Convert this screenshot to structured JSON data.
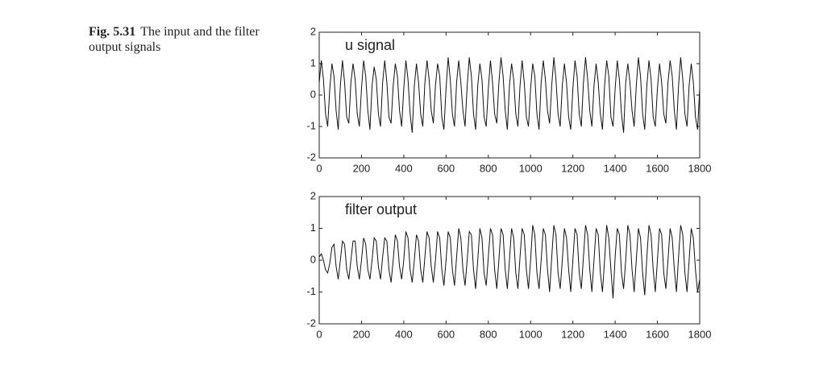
{
  "caption": {
    "label": "Fig. 5.31",
    "text": "The input and the filter output signals"
  },
  "chart_data": [
    {
      "type": "line",
      "x": [
        0,
        10,
        20,
        30,
        40,
        50,
        60,
        70,
        80,
        90,
        100,
        110,
        120,
        130,
        140,
        150,
        160,
        170,
        180,
        190,
        200,
        210,
        220,
        230,
        240,
        250,
        260,
        270,
        280,
        290,
        300,
        310,
        320,
        330,
        340,
        350,
        360,
        370,
        380,
        390,
        400,
        410,
        420,
        430,
        440,
        450,
        460,
        470,
        480,
        490,
        500,
        510,
        520,
        530,
        540,
        550,
        560,
        570,
        580,
        590,
        600,
        610,
        620,
        630,
        640,
        650,
        660,
        670,
        680,
        690,
        700,
        710,
        720,
        730,
        740,
        750,
        760,
        770,
        780,
        790,
        800,
        810,
        820,
        830,
        840,
        850,
        860,
        870,
        880,
        890,
        900,
        910,
        920,
        930,
        940,
        950,
        960,
        970,
        980,
        990,
        1000,
        1010,
        1020,
        1030,
        1040,
        1050,
        1060,
        1070,
        1080,
        1090,
        1100,
        1110,
        1120,
        1130,
        1140,
        1150,
        1160,
        1170,
        1180,
        1190,
        1200,
        1210,
        1220,
        1230,
        1240,
        1250,
        1260,
        1270,
        1280,
        1290,
        1300,
        1310,
        1320,
        1330,
        1340,
        1350,
        1360,
        1370,
        1380,
        1390,
        1400,
        1410,
        1420,
        1430,
        1440,
        1450,
        1460,
        1470,
        1480,
        1490,
        1500,
        1510,
        1520,
        1530,
        1540,
        1550,
        1560,
        1570,
        1580,
        1590,
        1600,
        1610,
        1620,
        1630,
        1640,
        1650,
        1660,
        1670,
        1680,
        1690,
        1700,
        1710,
        1720,
        1730,
        1740,
        1750,
        1760,
        1770,
        1780,
        1790,
        1800
      ],
      "series": [
        {
          "name": "u signal",
          "color": "#111111",
          "values": [
            0.4,
            1.1,
            0.5,
            -0.6,
            -1.0,
            0.2,
            1.0,
            0.6,
            -0.5,
            -1.1,
            0.3,
            1.1,
            0.4,
            -0.7,
            -0.9,
            0.4,
            1.0,
            0.5,
            -0.6,
            -1.0,
            0.2,
            1.1,
            0.6,
            -0.5,
            -1.1,
            0.3,
            0.9,
            0.5,
            -0.6,
            -1.0,
            0.4,
            1.1,
            0.4,
            -0.7,
            -0.9,
            0.3,
            1.0,
            0.6,
            -0.5,
            -1.0,
            0.2,
            1.1,
            0.5,
            -0.6,
            -1.2,
            0.3,
            1.0,
            0.4,
            -0.6,
            -1.0,
            0.4,
            1.1,
            0.5,
            -0.5,
            -0.9,
            0.3,
            1.0,
            0.6,
            -0.7,
            -1.1,
            0.2,
            1.2,
            0.5,
            -0.6,
            -1.0,
            0.4,
            1.1,
            0.4,
            -0.5,
            -1.0,
            0.3,
            1.2,
            0.6,
            -0.6,
            -1.1,
            0.3,
            1.0,
            0.5,
            -0.7,
            -1.0,
            0.2,
            1.1,
            0.4,
            -0.6,
            -0.9,
            0.4,
            1.2,
            0.6,
            -0.5,
            -1.1,
            0.3,
            1.0,
            0.5,
            -0.6,
            -1.0,
            0.3,
            1.1,
            0.4,
            -0.7,
            -1.0,
            0.2,
            1.0,
            0.6,
            -0.6,
            -1.1,
            0.4,
            1.1,
            0.5,
            -0.5,
            -0.9,
            0.3,
            1.2,
            0.5,
            -0.6,
            -1.0,
            0.3,
            1.0,
            0.4,
            -0.7,
            -1.1,
            0.2,
            1.1,
            0.6,
            -0.6,
            -1.0,
            0.4,
            1.2,
            0.5,
            -0.5,
            -1.0,
            0.3,
            1.0,
            0.4,
            -0.6,
            -1.1,
            0.3,
            1.1,
            0.6,
            -0.7,
            -1.0,
            0.2,
            1.1,
            0.5,
            -0.6,
            -1.2,
            0.4,
            1.0,
            0.4,
            -0.5,
            -1.0,
            0.3,
            1.2,
            0.6,
            -0.6,
            -1.1,
            0.3,
            1.1,
            0.5,
            -0.7,
            -1.0,
            0.2,
            1.0,
            0.4,
            -0.6,
            -0.9,
            0.4,
            1.1,
            0.6,
            -0.5,
            -1.1,
            0.3,
            1.2,
            0.5,
            -0.6,
            -1.0,
            0.3,
            1.0,
            0.4,
            -0.7,
            -1.1,
            0.2
          ]
        }
      ],
      "xlim": [
        0,
        1800
      ],
      "xticks": [
        0,
        200,
        400,
        600,
        800,
        1000,
        1200,
        1400,
        1600,
        1800
      ],
      "ylim": [
        -2,
        2
      ],
      "yticks": [
        -2,
        -1,
        0,
        1,
        2
      ]
    },
    {
      "type": "line",
      "x": [
        0,
        10,
        20,
        30,
        40,
        50,
        60,
        70,
        80,
        90,
        100,
        110,
        120,
        130,
        140,
        150,
        160,
        170,
        180,
        190,
        200,
        210,
        220,
        230,
        240,
        250,
        260,
        270,
        280,
        290,
        300,
        310,
        320,
        330,
        340,
        350,
        360,
        370,
        380,
        390,
        400,
        410,
        420,
        430,
        440,
        450,
        460,
        470,
        480,
        490,
        500,
        510,
        520,
        530,
        540,
        550,
        560,
        570,
        580,
        590,
        600,
        610,
        620,
        630,
        640,
        650,
        660,
        670,
        680,
        690,
        700,
        710,
        720,
        730,
        740,
        750,
        760,
        770,
        780,
        790,
        800,
        810,
        820,
        830,
        840,
        850,
        860,
        870,
        880,
        890,
        900,
        910,
        920,
        930,
        940,
        950,
        960,
        970,
        980,
        990,
        1000,
        1010,
        1020,
        1030,
        1040,
        1050,
        1060,
        1070,
        1080,
        1090,
        1100,
        1110,
        1120,
        1130,
        1140,
        1150,
        1160,
        1170,
        1180,
        1190,
        1200,
        1210,
        1220,
        1230,
        1240,
        1250,
        1260,
        1270,
        1280,
        1290,
        1300,
        1310,
        1320,
        1330,
        1340,
        1350,
        1360,
        1370,
        1380,
        1390,
        1400,
        1410,
        1420,
        1430,
        1440,
        1450,
        1460,
        1470,
        1480,
        1490,
        1500,
        1510,
        1520,
        1530,
        1540,
        1550,
        1560,
        1570,
        1580,
        1590,
        1600,
        1610,
        1620,
        1630,
        1640,
        1650,
        1660,
        1670,
        1680,
        1690,
        1700,
        1710,
        1720,
        1730,
        1740,
        1750,
        1760,
        1770,
        1780,
        1790,
        1800
      ],
      "series": [
        {
          "name": "filter output",
          "color": "#111111",
          "values": [
            0.1,
            0.2,
            0.0,
            -0.3,
            -0.4,
            -0.1,
            0.4,
            0.5,
            -0.2,
            -0.6,
            0.0,
            0.6,
            0.5,
            -0.3,
            -0.6,
            0.0,
            0.6,
            0.6,
            -0.2,
            -0.6,
            0.0,
            0.7,
            0.5,
            -0.3,
            -0.6,
            0.0,
            0.7,
            0.6,
            -0.2,
            -0.6,
            0.1,
            0.7,
            0.6,
            -0.3,
            -0.7,
            0.0,
            0.8,
            0.6,
            -0.2,
            -0.6,
            0.0,
            0.9,
            0.7,
            -0.3,
            -0.7,
            0.0,
            0.8,
            0.6,
            -0.3,
            -0.7,
            0.1,
            0.9,
            0.7,
            -0.2,
            -0.7,
            0.0,
            0.9,
            0.7,
            -0.3,
            -0.8,
            0.0,
            0.9,
            0.7,
            -0.3,
            -0.8,
            0.1,
            1.0,
            0.7,
            -0.3,
            -0.8,
            0.0,
            0.9,
            0.8,
            -0.3,
            -0.9,
            0.0,
            1.0,
            0.7,
            -0.4,
            -0.8,
            0.1,
            1.0,
            0.8,
            -0.3,
            -0.9,
            0.0,
            1.0,
            0.8,
            -0.3,
            -0.9,
            0.0,
            1.0,
            0.7,
            -0.4,
            -0.9,
            0.1,
            1.0,
            0.8,
            -0.3,
            -0.9,
            0.0,
            1.1,
            0.8,
            -0.4,
            -0.9,
            0.0,
            1.0,
            0.8,
            -0.3,
            -1.0,
            0.1,
            1.1,
            0.8,
            -0.4,
            -0.9,
            0.0,
            1.0,
            0.7,
            -0.3,
            -1.0,
            0.0,
            1.0,
            0.8,
            -0.4,
            -0.9,
            0.1,
            1.1,
            0.8,
            -0.3,
            -1.0,
            0.0,
            1.0,
            0.8,
            -0.4,
            -1.0,
            0.0,
            1.1,
            0.7,
            -0.3,
            -1.2,
            0.1,
            1.0,
            0.8,
            -0.4,
            -0.9,
            0.0,
            1.1,
            0.8,
            -0.3,
            -1.0,
            0.0,
            1.0,
            0.7,
            -0.4,
            -1.1,
            0.1,
            1.1,
            0.8,
            -0.3,
            -1.0,
            0.0,
            1.0,
            0.8,
            -0.4,
            -0.9,
            0.0,
            1.0,
            0.7,
            -0.3,
            -1.0,
            0.1,
            1.1,
            0.8,
            -0.4,
            -1.0,
            0.0,
            1.0,
            0.7,
            -0.3,
            -1.0,
            -0.6
          ]
        }
      ],
      "xlim": [
        0,
        1800
      ],
      "xticks": [
        0,
        200,
        400,
        600,
        800,
        1000,
        1200,
        1400,
        1600,
        1800
      ],
      "ylim": [
        -2,
        2
      ],
      "yticks": [
        -2,
        -1,
        0,
        1,
        2
      ]
    }
  ]
}
